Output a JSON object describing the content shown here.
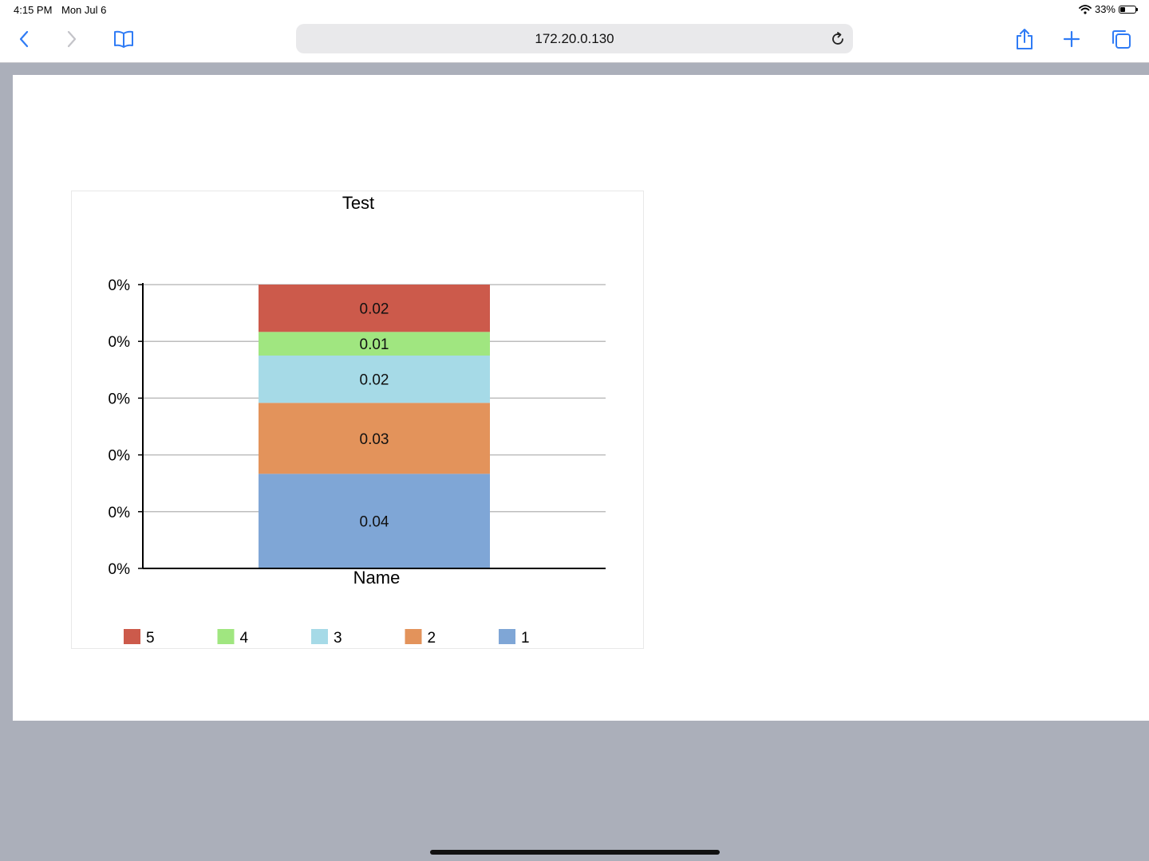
{
  "status_bar": {
    "time": "4:15 PM",
    "date": "Mon Jul 6",
    "battery": "33%"
  },
  "toolbar": {
    "url": "172.20.0.130",
    "icons": [
      "back-icon",
      "forward-icon",
      "bookmarks-icon",
      "reload-icon",
      "share-icon",
      "new-tab-icon",
      "tabs-icon"
    ],
    "accent_color": "#2f7bf5"
  },
  "chart_data": {
    "type": "bar",
    "stacked": true,
    "title": "Test",
    "categories": [
      "Name"
    ],
    "series": [
      {
        "name": "1",
        "values": [
          0.04
        ],
        "color": "#7fa6d6"
      },
      {
        "name": "2",
        "values": [
          0.03
        ],
        "color": "#e3935b"
      },
      {
        "name": "3",
        "values": [
          0.02
        ],
        "color": "#a6dae7"
      },
      {
        "name": "4",
        "values": [
          0.01
        ],
        "color": "#a0e680"
      },
      {
        "name": "5",
        "values": [
          0.02
        ],
        "color": "#cc5a4b"
      }
    ],
    "y_tick_labels": [
      "0%",
      "0%",
      "0%",
      "0%",
      "0%",
      "0%"
    ],
    "ylim": [
      0,
      0.12
    ],
    "grid": true,
    "legend_position": "bottom"
  }
}
